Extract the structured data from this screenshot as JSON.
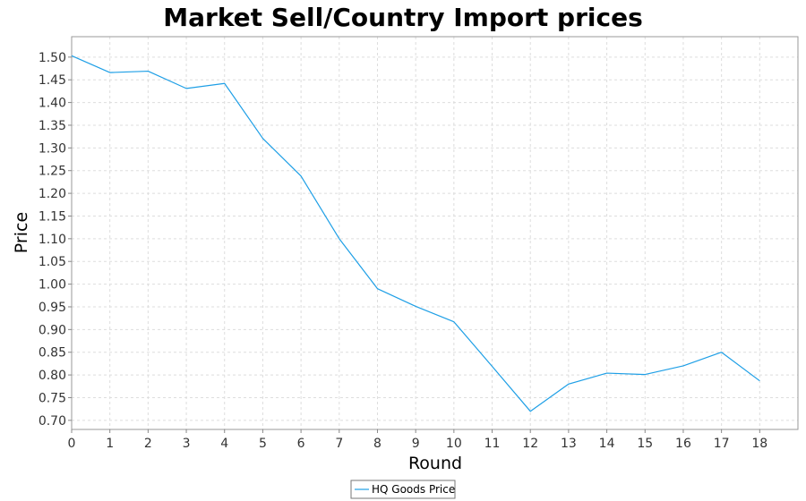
{
  "chart_data": {
    "type": "line",
    "title": "Market Sell/Country Import prices",
    "xlabel": "Round",
    "ylabel": "Price",
    "xlim": [
      0,
      19
    ],
    "ylim": [
      0.68,
      1.545
    ],
    "x_ticks": [
      0,
      1,
      2,
      3,
      4,
      5,
      6,
      7,
      8,
      9,
      10,
      11,
      12,
      13,
      14,
      15,
      16,
      17,
      18
    ],
    "y_ticks": [
      0.7,
      0.75,
      0.8,
      0.85,
      0.9,
      0.95,
      1.0,
      1.05,
      1.1,
      1.15,
      1.2,
      1.25,
      1.3,
      1.35,
      1.4,
      1.45,
      1.5
    ],
    "grid": true,
    "legend_position": "bottom-center",
    "series": [
      {
        "name": "HQ Goods Price",
        "color": "#1e9fe6",
        "x": [
          0,
          1,
          2,
          3,
          4,
          5,
          6,
          7,
          8,
          9,
          10,
          11,
          12,
          13,
          14,
          15,
          16,
          17,
          18
        ],
        "values": [
          1.503,
          1.466,
          1.469,
          1.431,
          1.442,
          1.321,
          1.238,
          1.1,
          0.99,
          0.951,
          0.917,
          0.819,
          0.72,
          0.78,
          0.804,
          0.801,
          0.82,
          0.85,
          0.787
        ]
      }
    ]
  }
}
